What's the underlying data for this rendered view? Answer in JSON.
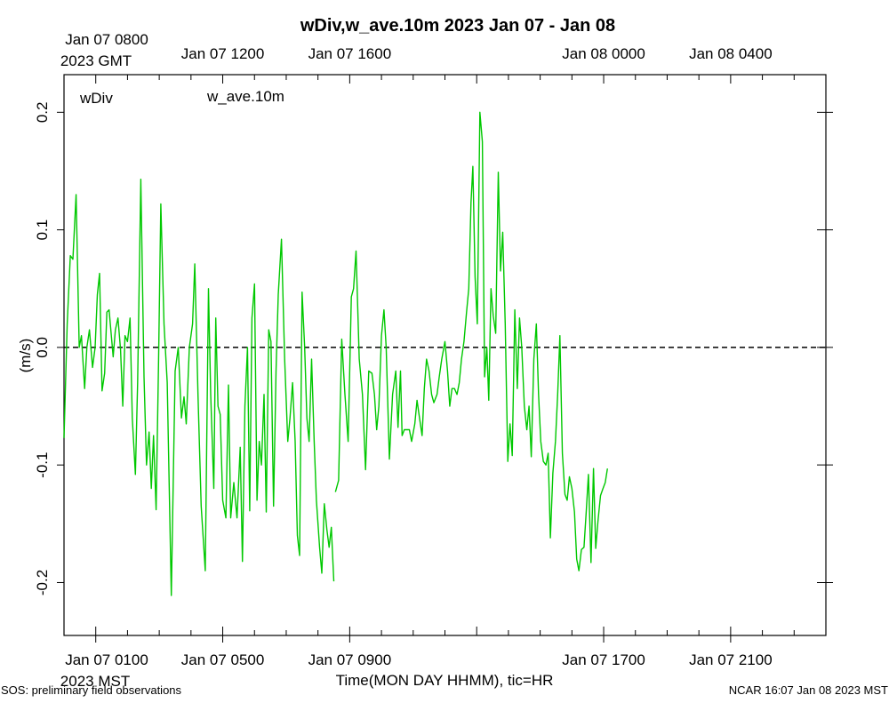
{
  "chart_data": {
    "type": "line",
    "title": "wDiv,w_ave.10m 2023 Jan 07 - Jan 08",
    "ylabel": "(m/s)",
    "xlabel": "Time(MON DAY HHMM), tic=HR",
    "ylim": [
      -0.245,
      0.232
    ],
    "xlim_hours": [
      0,
      24
    ],
    "zero_line": 0.0,
    "y_ticks": [
      {
        "value": 0.2,
        "label": "0.2"
      },
      {
        "value": 0.1,
        "label": "0.1"
      },
      {
        "value": 0.0,
        "label": "0.0"
      },
      {
        "value": -0.1,
        "label": "-0.1"
      },
      {
        "value": -0.2,
        "label": "-0.2"
      }
    ],
    "top_axis": {
      "first_label_line1": "Jan 07 0800",
      "first_label_line2": "2023 GMT",
      "labels": [
        {
          "hour": 4,
          "text": "Jan 07 1200"
        },
        {
          "hour": 8,
          "text": "Jan 07 1600"
        },
        {
          "hour": 16,
          "text": "Jan 08 0000"
        },
        {
          "hour": 20,
          "text": "Jan 08 0400"
        }
      ]
    },
    "bottom_axis": {
      "first_label_line1": "Jan 07 0100",
      "first_label_line2": "2023 MST",
      "labels": [
        {
          "hour": 4,
          "text": "Jan 07 0500"
        },
        {
          "hour": 8,
          "text": "Jan 07 0900"
        },
        {
          "hour": 16,
          "text": "Jan 07 1700"
        },
        {
          "hour": 20,
          "text": "Jan 07 2100"
        }
      ]
    },
    "legend": [
      {
        "name": "wDiv",
        "color": "#ff0000"
      },
      {
        "name": "w_ave.10m",
        "color": "#00c800"
      }
    ],
    "series": [
      {
        "name": "w_ave.10m",
        "color": "#00c800",
        "segments": [
          [
            [
              0.0,
              -0.077
            ],
            [
              0.1,
              0.02
            ],
            [
              0.2,
              0.078
            ],
            [
              0.28,
              0.075
            ],
            [
              0.38,
              0.13
            ],
            [
              0.48,
              0.0
            ],
            [
              0.55,
              0.01
            ],
            [
              0.65,
              -0.035
            ],
            [
              0.72,
              0.0
            ],
            [
              0.8,
              0.015
            ],
            [
              0.9,
              -0.017
            ],
            [
              0.98,
              0.0
            ],
            [
              1.05,
              0.045
            ],
            [
              1.12,
              0.063
            ],
            [
              1.2,
              -0.037
            ],
            [
              1.28,
              -0.022
            ],
            [
              1.35,
              0.03
            ],
            [
              1.42,
              0.032
            ],
            [
              1.55,
              -0.008
            ],
            [
              1.62,
              0.015
            ],
            [
              1.7,
              0.025
            ],
            [
              1.78,
              -0.002
            ],
            [
              1.85,
              -0.05
            ],
            [
              1.92,
              0.01
            ],
            [
              2.0,
              0.005
            ],
            [
              2.08,
              0.025
            ],
            [
              2.15,
              -0.06
            ],
            [
              2.25,
              -0.108
            ],
            [
              2.32,
              -0.03
            ],
            [
              2.42,
              0.143
            ],
            [
              2.52,
              -0.025
            ],
            [
              2.6,
              -0.1
            ],
            [
              2.68,
              -0.072
            ],
            [
              2.75,
              -0.12
            ],
            [
              2.82,
              -0.075
            ],
            [
              2.9,
              -0.138
            ],
            [
              2.98,
              -0.01
            ],
            [
              3.05,
              0.122
            ],
            [
              3.15,
              0.02
            ],
            [
              3.25,
              -0.03
            ],
            [
              3.38,
              -0.211
            ],
            [
              3.5,
              -0.02
            ],
            [
              3.6,
              0.0
            ],
            [
              3.7,
              -0.06
            ],
            [
              3.78,
              -0.042
            ],
            [
              3.85,
              -0.065
            ],
            [
              3.95,
              0.0
            ],
            [
              4.05,
              0.02
            ],
            [
              4.12,
              0.071
            ],
            [
              4.22,
              -0.04
            ],
            [
              4.32,
              -0.135
            ],
            [
              4.45,
              -0.19
            ],
            [
              4.55,
              0.05
            ],
            [
              4.62,
              -0.04
            ],
            [
              4.72,
              -0.12
            ],
            [
              4.78,
              0.025
            ],
            [
              4.85,
              -0.05
            ],
            [
              4.92,
              -0.057
            ],
            [
              5.0,
              -0.13
            ],
            [
              5.1,
              -0.145
            ],
            [
              5.18,
              -0.032
            ],
            [
              5.25,
              -0.145
            ],
            [
              5.35,
              -0.115
            ],
            [
              5.45,
              -0.145
            ],
            [
              5.55,
              -0.085
            ],
            [
              5.62,
              -0.182
            ],
            [
              5.7,
              -0.05
            ],
            [
              5.78,
              0.0
            ],
            [
              5.85,
              -0.139
            ],
            [
              5.92,
              0.025
            ],
            [
              6.0,
              0.054
            ],
            [
              6.08,
              -0.13
            ],
            [
              6.15,
              -0.08
            ],
            [
              6.22,
              -0.1
            ],
            [
              6.3,
              -0.04
            ],
            [
              6.37,
              -0.14
            ],
            [
              6.45,
              0.015
            ],
            [
              6.52,
              0.005
            ],
            [
              6.6,
              -0.135
            ],
            [
              6.68,
              -0.02
            ],
            [
              6.75,
              0.045
            ],
            [
              6.85,
              0.092
            ],
            [
              6.95,
              -0.01
            ],
            [
              7.05,
              -0.08
            ],
            [
              7.12,
              -0.06
            ],
            [
              7.2,
              -0.03
            ],
            [
              7.28,
              -0.08
            ],
            [
              7.35,
              -0.16
            ],
            [
              7.42,
              -0.177
            ],
            [
              7.5,
              0.047
            ],
            [
              7.58,
              0.0
            ],
            [
              7.65,
              -0.06
            ],
            [
              7.72,
              -0.08
            ],
            [
              7.8,
              -0.01
            ],
            [
              7.88,
              -0.08
            ],
            [
              7.95,
              -0.13
            ],
            [
              8.05,
              -0.17
            ],
            [
              8.12,
              -0.192
            ],
            [
              8.2,
              -0.133
            ],
            [
              8.28,
              -0.155
            ],
            [
              8.35,
              -0.17
            ],
            [
              8.42,
              -0.153
            ],
            [
              8.5,
              -0.199
            ]
          ],
          [
            [
              8.55,
              -0.123
            ],
            [
              8.65,
              -0.113
            ],
            [
              8.75,
              0.007
            ],
            [
              8.85,
              -0.04
            ],
            [
              8.95,
              -0.08
            ],
            [
              9.05,
              0.043
            ],
            [
              9.12,
              0.05
            ],
            [
              9.2,
              0.082
            ],
            [
              9.3,
              -0.01
            ],
            [
              9.4,
              -0.04
            ],
            [
              9.5,
              -0.104
            ],
            [
              9.6,
              -0.02
            ],
            [
              9.7,
              -0.022
            ],
            [
              9.78,
              -0.04
            ],
            [
              9.85,
              -0.07
            ],
            [
              9.92,
              -0.05
            ],
            [
              10.0,
              0.01
            ],
            [
              10.08,
              0.032
            ],
            [
              10.15,
              0.0
            ],
            [
              10.25,
              -0.095
            ],
            [
              10.35,
              -0.04
            ],
            [
              10.45,
              -0.02
            ],
            [
              10.52,
              -0.068
            ],
            [
              10.6,
              -0.02
            ],
            [
              10.65,
              -0.075
            ],
            [
              10.72,
              -0.07
            ],
            [
              10.8,
              -0.07
            ],
            [
              10.88,
              -0.07
            ],
            [
              10.95,
              -0.08
            ],
            [
              11.05,
              -0.065
            ],
            [
              11.12,
              -0.045
            ],
            [
              11.2,
              -0.06
            ],
            [
              11.28,
              -0.075
            ],
            [
              11.35,
              -0.035
            ],
            [
              11.42,
              -0.01
            ],
            [
              11.5,
              -0.02
            ],
            [
              11.58,
              -0.04
            ],
            [
              11.65,
              -0.047
            ],
            [
              11.75,
              -0.04
            ],
            [
              11.82,
              -0.025
            ],
            [
              11.9,
              -0.01
            ],
            [
              12.0,
              0.005
            ],
            [
              12.08,
              -0.02
            ],
            [
              12.15,
              -0.05
            ],
            [
              12.22,
              -0.035
            ],
            [
              12.3,
              -0.035
            ],
            [
              12.38,
              -0.04
            ],
            [
              12.45,
              -0.03
            ],
            [
              12.52,
              -0.01
            ],
            [
              12.6,
              0.005
            ],
            [
              12.68,
              0.03
            ],
            [
              12.75,
              0.05
            ],
            [
              12.82,
              0.123
            ],
            [
              12.88,
              0.154
            ],
            [
              12.95,
              0.06
            ],
            [
              13.02,
              0.02
            ],
            [
              13.1,
              0.2
            ],
            [
              13.18,
              0.175
            ],
            [
              13.25,
              -0.025
            ],
            [
              13.32,
              0.0
            ],
            [
              13.38,
              -0.045
            ],
            [
              13.45,
              0.05
            ],
            [
              13.52,
              0.027
            ],
            [
              13.6,
              0.012
            ],
            [
              13.68,
              0.149
            ],
            [
              13.75,
              0.065
            ],
            [
              13.82,
              0.098
            ],
            [
              13.9,
              0.02
            ],
            [
              13.98,
              -0.097
            ],
            [
              14.05,
              -0.065
            ],
            [
              14.12,
              -0.092
            ],
            [
              14.2,
              0.032
            ],
            [
              14.28,
              -0.035
            ],
            [
              14.35,
              0.025
            ],
            [
              14.42,
              0.0
            ],
            [
              14.5,
              -0.05
            ],
            [
              14.58,
              -0.07
            ],
            [
              14.65,
              -0.05
            ],
            [
              14.72,
              -0.093
            ],
            [
              14.8,
              -0.01
            ],
            [
              14.88,
              0.02
            ],
            [
              14.95,
              -0.04
            ],
            [
              15.02,
              -0.08
            ],
            [
              15.1,
              -0.097
            ],
            [
              15.18,
              -0.1
            ],
            [
              15.25,
              -0.09
            ],
            [
              15.32,
              -0.162
            ],
            [
              15.4,
              -0.107
            ],
            [
              15.48,
              -0.08
            ],
            [
              15.55,
              -0.04
            ],
            [
              15.62,
              0.01
            ],
            [
              15.7,
              -0.09
            ],
            [
              15.78,
              -0.125
            ],
            [
              15.85,
              -0.13
            ],
            [
              15.92,
              -0.11
            ],
            [
              16.0,
              -0.12
            ],
            [
              16.08,
              -0.14
            ],
            [
              16.15,
              -0.18
            ],
            [
              16.22,
              -0.19
            ],
            [
              16.3,
              -0.172
            ],
            [
              16.38,
              -0.17
            ],
            [
              16.45,
              -0.14
            ],
            [
              16.52,
              -0.108
            ],
            [
              16.6,
              -0.183
            ],
            [
              16.68,
              -0.103
            ],
            [
              16.75,
              -0.171
            ],
            [
              16.82,
              -0.148
            ],
            [
              16.9,
              -0.126
            ],
            [
              16.98,
              -0.12
            ],
            [
              17.05,
              -0.115
            ],
            [
              17.12,
              -0.103
            ]
          ]
        ]
      }
    ]
  },
  "footer": {
    "left": "SOS: preliminary field observations",
    "right": "NCAR 16:07 Jan 08 2023 MST"
  }
}
